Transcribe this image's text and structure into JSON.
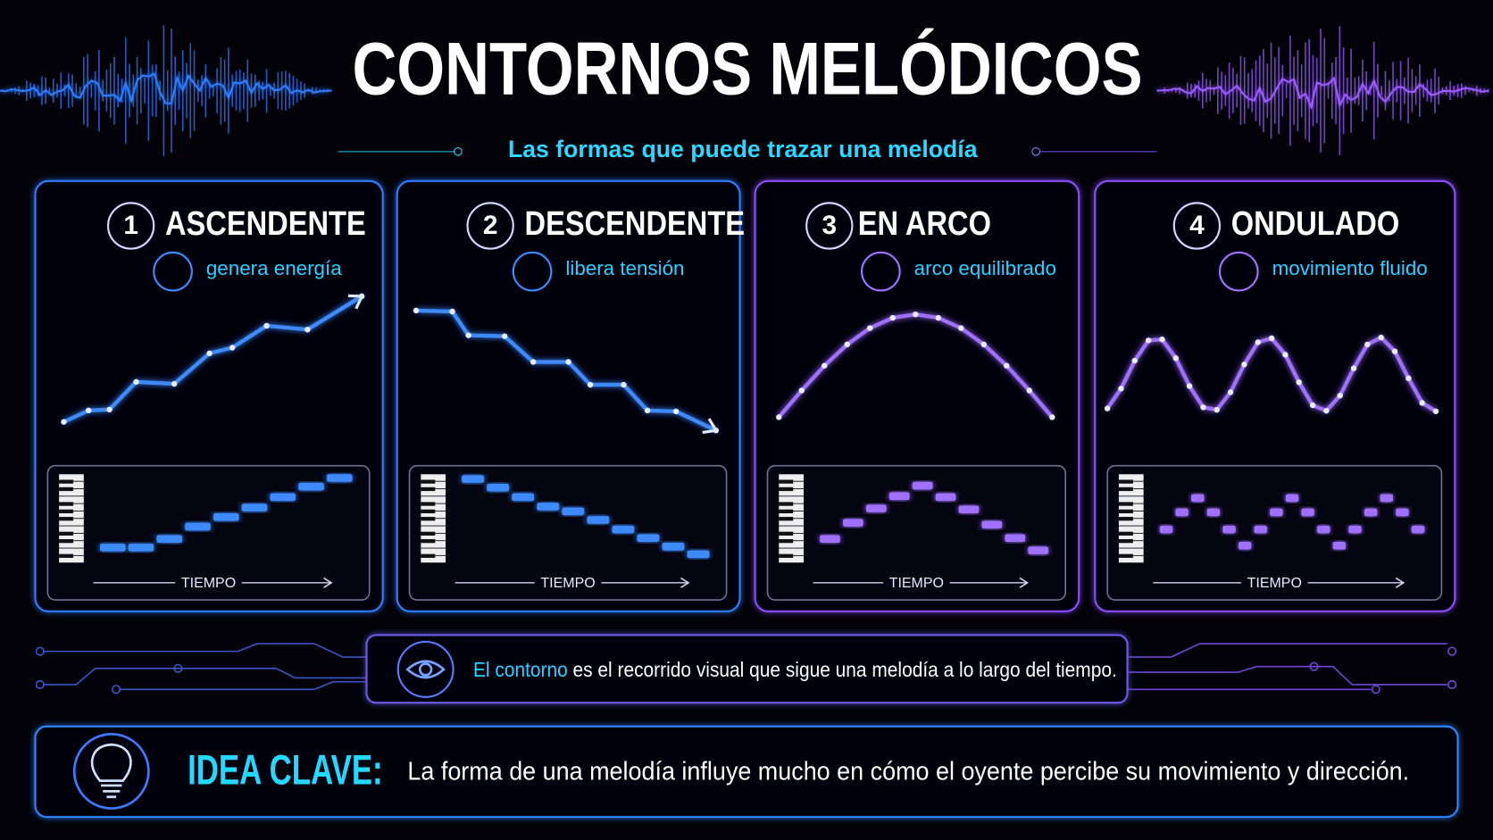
{
  "header": {
    "title": "CONTORNOS MELÓDICOS",
    "subtitle": "Las formas que puede trazar una melodía"
  },
  "cards": [
    {
      "number": "1",
      "title": "ASCENDENTE",
      "subtitle": "genera energía",
      "axis": "TIEMPO"
    },
    {
      "number": "2",
      "title": "DESCENDENTE",
      "subtitle": "libera tensión",
      "axis": "TIEMPO"
    },
    {
      "number": "3",
      "title": "EN ARCO",
      "subtitle": "arco equilibrado",
      "axis": "TIEMPO"
    },
    {
      "number": "4",
      "title": "ONDULADO",
      "subtitle": "movimiento fluido",
      "axis": "TIEMPO"
    }
  ],
  "note": {
    "highlight": "El contorno",
    "text": "es el recorrido visual que sigue una melodía a lo largo del tiempo."
  },
  "key_idea": {
    "label": "IDEA CLAVE:",
    "text": "La forma de una melodía influye mucho en cómo el oyente percibe su movimiento y dirección."
  }
}
